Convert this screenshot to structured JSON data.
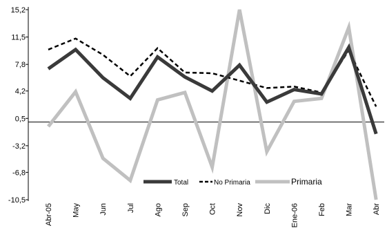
{
  "chart_data": {
    "type": "line",
    "title": "",
    "xlabel": "",
    "ylabel": "",
    "categories": [
      "Abr-05",
      "May",
      "Jun",
      "Jul",
      "Ago",
      "Sep",
      "Oct",
      "Nov",
      "Dic",
      "Ene-06",
      "Feb",
      "Mar",
      "Abr"
    ],
    "y_ticks": [
      "15,2",
      "11,5",
      "7,8",
      "4,2",
      "0,5",
      "-3,2",
      "-6,8",
      "-10,5"
    ],
    "y_tick_values": [
      15.2,
      11.5,
      7.8,
      4.2,
      0.5,
      -3.2,
      -6.8,
      -10.5
    ],
    "ylim": [
      -10.5,
      15.2
    ],
    "zero_line": 0,
    "grid": false,
    "legend_position": "bottom-center",
    "series": [
      {
        "name": "Total",
        "style": "solid",
        "color": "#3a3a3a",
        "values": [
          7.2,
          9.8,
          6.0,
          3.2,
          8.8,
          6.1,
          4.2,
          7.7,
          2.7,
          4.4,
          3.8,
          10.1,
          -1.6
        ]
      },
      {
        "name": "No Primaria",
        "style": "dashed",
        "color": "#000000",
        "values": [
          9.8,
          11.3,
          9.1,
          6.2,
          10.0,
          6.7,
          6.6,
          5.6,
          4.6,
          4.8,
          4.0,
          9.7,
          2.1
        ]
      },
      {
        "name": "Primaria",
        "style": "solid",
        "color": "#c0c0c0",
        "values": [
          -0.6,
          4.1,
          -4.9,
          -7.9,
          3.0,
          4.0,
          -6.1,
          15.2,
          -4.0,
          2.8,
          3.2,
          12.8,
          -10.5
        ]
      }
    ]
  }
}
